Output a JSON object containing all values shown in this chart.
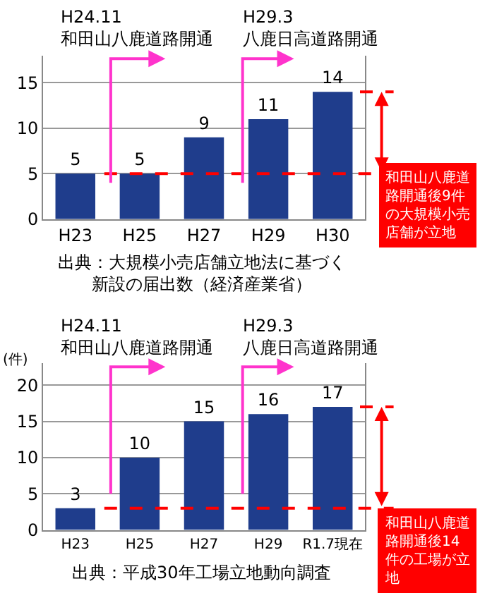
{
  "chart_data": [
    {
      "type": "bar",
      "categories": [
        "H23",
        "H25",
        "H27",
        "H29",
        "H30"
      ],
      "values": [
        5,
        5,
        9,
        11,
        14
      ],
      "color": "#1f3d8c",
      "ylim": [
        0,
        18
      ],
      "yticks": [
        0,
        5,
        10,
        15
      ],
      "grid": "y",
      "legend": false,
      "data_labels": true,
      "ref_lines": [
        {
          "axis": "y",
          "value": 5,
          "color": "#ff0000",
          "line_style": "dashed"
        }
      ],
      "annotations": [
        "H24.11\n和田山八鹿道路開通",
        "H29.3\n八鹿日高道路開通",
        "和田山八鹿道路開通後9件の大規模小売店舗が立地",
        "出典：大規模小売店舗立地法に基づく新設の届出数（経済産業省）"
      ]
    },
    {
      "type": "bar",
      "categories": [
        "H23",
        "H25",
        "H27",
        "H29",
        "R1.7現在"
      ],
      "values": [
        3,
        10,
        15,
        16,
        17
      ],
      "color": "#1f3d8c",
      "ylabel": "(件)",
      "ylim": [
        0,
        23
      ],
      "yticks": [
        0,
        5,
        10,
        15,
        20
      ],
      "grid": "y",
      "legend": false,
      "data_labels": true,
      "ref_lines": [
        {
          "axis": "y",
          "value": 3,
          "color": "#ff0000",
          "line_style": "dashed"
        }
      ],
      "annotations": [
        "H24.11\n和田山八鹿道路開通",
        "H29.3\n八鹿日高道路開通",
        "和田山八鹿道路開通後14件の工場が立地",
        "出典：平成30年工場立地動向調査"
      ]
    }
  ]
}
